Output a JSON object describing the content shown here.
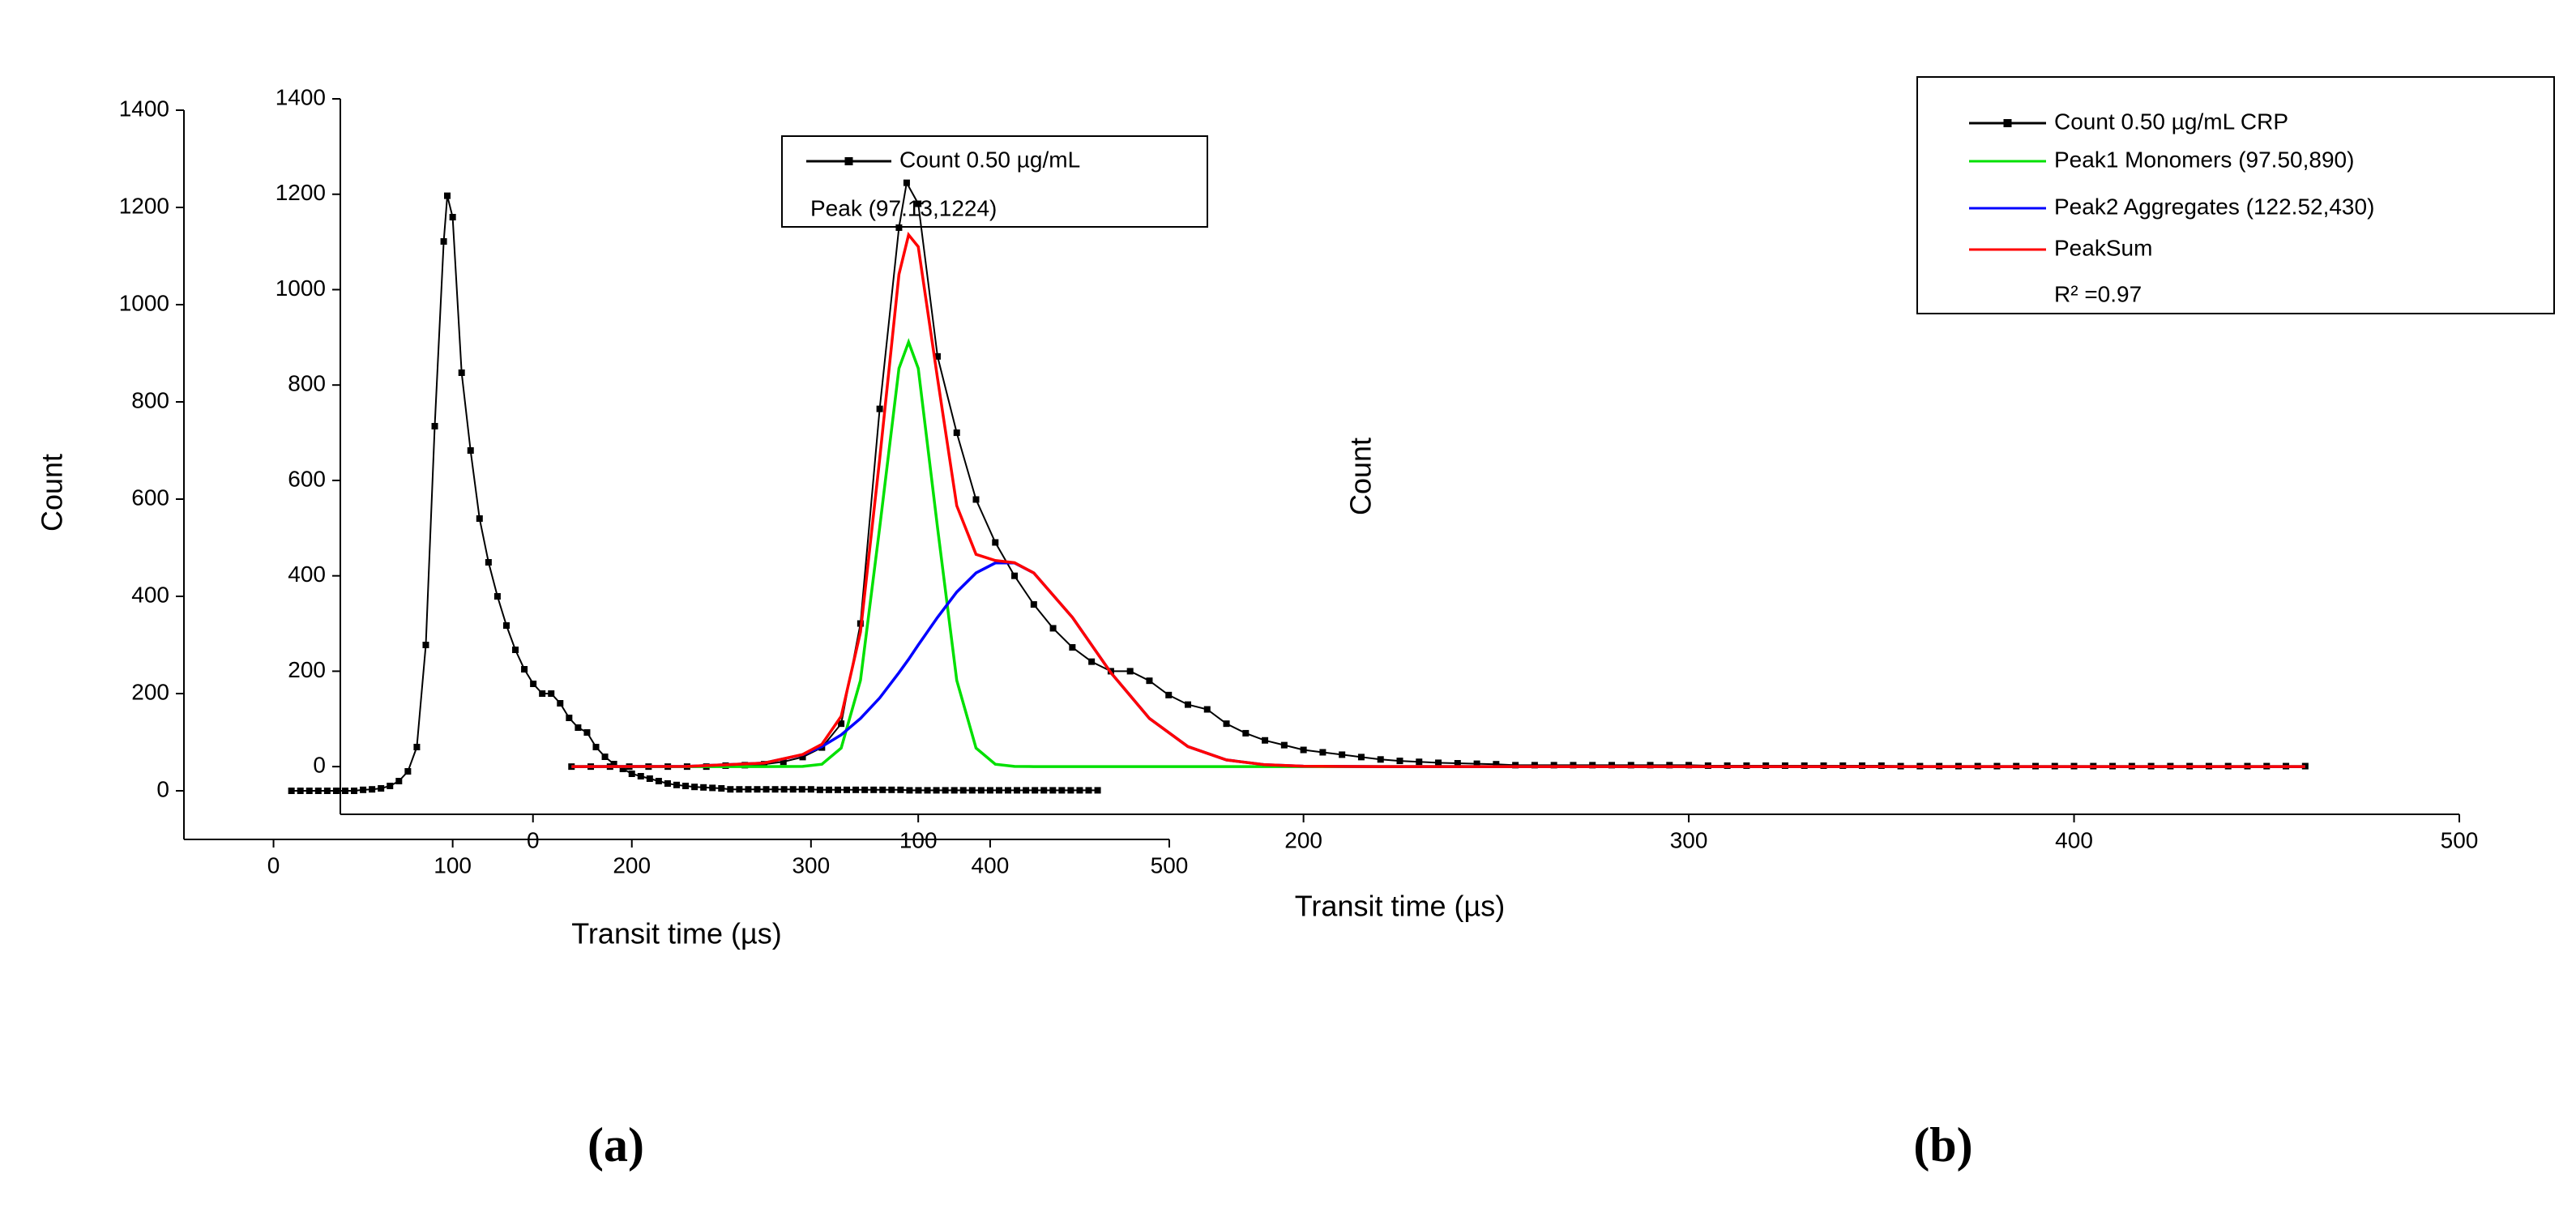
{
  "chart_data": [
    {
      "type": "line",
      "caption": "(a)",
      "xlabel": "Transit time (µs)",
      "ylabel": "Count",
      "xlim": [
        -50,
        500
      ],
      "xticks": [
        0,
        100,
        200,
        300,
        400,
        500
      ],
      "ylim": [
        -100,
        1400
      ],
      "yticks": [
        0,
        200,
        400,
        600,
        800,
        1000,
        1200,
        1400
      ],
      "x": [
        10,
        15,
        20,
        25,
        30,
        35,
        40,
        45,
        50,
        55,
        60,
        65,
        70,
        75,
        80,
        85,
        90,
        95,
        97,
        100,
        105,
        110,
        115,
        120,
        125,
        130,
        135,
        140,
        145,
        150,
        155,
        160,
        165,
        170,
        175,
        180,
        185,
        190,
        195,
        200,
        205,
        210,
        215,
        220,
        225,
        230,
        235,
        240,
        245,
        250,
        255,
        260,
        265,
        270,
        275,
        280,
        285,
        290,
        295,
        300,
        305,
        310,
        315,
        320,
        325,
        330,
        335,
        340,
        345,
        350,
        355,
        360,
        365,
        370,
        375,
        380,
        385,
        390,
        395,
        400,
        405,
        410,
        415,
        420,
        425,
        430,
        435,
        440,
        445,
        450,
        455,
        460
      ],
      "series": [
        {
          "name": "Count 0.50 µg/mL",
          "color": "#000000",
          "marker": "square",
          "values": [
            0,
            0,
            0,
            0,
            0,
            0,
            0,
            0,
            2,
            3,
            5,
            10,
            20,
            40,
            90,
            300,
            750,
            1130,
            1224,
            1180,
            860,
            700,
            560,
            470,
            400,
            340,
            290,
            250,
            220,
            200,
            200,
            180,
            150,
            130,
            120,
            90,
            70,
            55,
            45,
            35,
            30,
            25,
            20,
            15,
            12,
            10,
            8,
            7,
            6,
            5,
            3,
            3,
            3,
            3,
            3,
            3,
            3,
            3,
            3,
            3,
            2,
            2,
            2,
            2,
            2,
            2,
            2,
            2,
            2,
            2,
            1,
            1,
            1,
            1,
            1,
            1,
            1,
            1,
            1,
            1,
            1,
            1,
            1,
            1,
            1,
            1,
            1,
            1,
            1,
            1,
            1,
            1
          ]
        }
      ],
      "annotation": "Peak (97.13,1224)"
    },
    {
      "type": "line",
      "caption": "(b)",
      "xlabel": "Transit time (µs)",
      "ylabel": "Count",
      "xlim": [
        -50,
        500
      ],
      "xticks": [
        0,
        100,
        200,
        300,
        400,
        500
      ],
      "ylim": [
        -100,
        1400
      ],
      "yticks": [
        0,
        200,
        400,
        600,
        800,
        1000,
        1200,
        1400
      ],
      "x": [
        10,
        15,
        20,
        25,
        30,
        35,
        40,
        45,
        50,
        55,
        60,
        65,
        70,
        75,
        80,
        85,
        90,
        95,
        97,
        100,
        105,
        110,
        115,
        120,
        125,
        130,
        135,
        140,
        145,
        150,
        155,
        160,
        165,
        170,
        175,
        180,
        185,
        190,
        195,
        200,
        205,
        210,
        215,
        220,
        225,
        230,
        235,
        240,
        245,
        250,
        255,
        260,
        265,
        270,
        275,
        280,
        285,
        290,
        295,
        300,
        305,
        310,
        315,
        320,
        325,
        330,
        335,
        340,
        345,
        350,
        355,
        360,
        365,
        370,
        375,
        380,
        385,
        390,
        395,
        400,
        405,
        410,
        415,
        420,
        425,
        430,
        435,
        440,
        445,
        450,
        455,
        460
      ],
      "series": [
        {
          "name": "Count 0.50 µg/mL CRP",
          "color": "#000000",
          "marker": "square",
          "values": [
            0,
            0,
            0,
            0,
            0,
            0,
            0,
            0,
            2,
            3,
            5,
            10,
            20,
            40,
            90,
            300,
            750,
            1130,
            1224,
            1180,
            860,
            700,
            560,
            470,
            400,
            340,
            290,
            250,
            220,
            200,
            200,
            180,
            150,
            130,
            120,
            90,
            70,
            55,
            45,
            35,
            30,
            25,
            20,
            15,
            12,
            10,
            8,
            7,
            6,
            5,
            3,
            3,
            3,
            3,
            3,
            3,
            3,
            3,
            3,
            3,
            2,
            2,
            2,
            2,
            2,
            2,
            2,
            2,
            2,
            2,
            1,
            1,
            1,
            1,
            1,
            1,
            1,
            1,
            1,
            1,
            1,
            1,
            1,
            1,
            1,
            1,
            1,
            1,
            1,
            1,
            1,
            1
          ]
        },
        {
          "name": "Peak1 Monomers (97.50,890)",
          "color": "#00e000",
          "x": [
            10,
            40,
            60,
            70,
            75,
            80,
            85,
            90,
            95,
            97.5,
            100,
            105,
            110,
            115,
            120,
            125,
            130,
            140,
            150,
            160,
            170,
            180,
            190,
            200,
            220,
            250,
            300,
            460
          ],
          "values": [
            0,
            0,
            0,
            0.4,
            5,
            39,
            181,
            501,
            835,
            890,
            835,
            501,
            181,
            39,
            5,
            0.4,
            0,
            0,
            0,
            0,
            0,
            0,
            0,
            0,
            0,
            0,
            0,
            0
          ]
        },
        {
          "name": "Peak2 Aggregates (122.52,430)",
          "color": "#0000ff",
          "x": [
            10,
            40,
            60,
            70,
            75,
            80,
            85,
            90,
            95,
            97.5,
            100,
            105,
            110,
            115,
            120,
            125,
            130,
            140,
            150,
            160,
            170,
            180,
            190,
            200,
            220,
            250,
            300,
            460
          ],
          "values": [
            0,
            0.4,
            7.6,
            25,
            42,
            66.5,
            101,
            144,
            197,
            225,
            255,
            313,
            366,
            406,
            427,
            427,
            406,
            313,
            197,
            101,
            42,
            14,
            3.9,
            0.9,
            0,
            0,
            0,
            0
          ]
        },
        {
          "name": "PeakSum",
          "color": "#ff0000",
          "x": [
            10,
            40,
            60,
            70,
            75,
            80,
            85,
            90,
            95,
            97.5,
            100,
            105,
            110,
            115,
            120,
            125,
            130,
            140,
            150,
            160,
            170,
            180,
            190,
            200,
            220,
            250,
            300,
            460
          ],
          "values": [
            0,
            0.4,
            7.6,
            25.4,
            47,
            105.5,
            282,
            645,
            1032,
            1115,
            1090,
            814,
            547,
            445,
            432,
            427.4,
            406,
            313,
            197,
            101,
            42,
            14,
            3.9,
            0.9,
            0,
            0,
            0,
            0
          ]
        }
      ],
      "annotation": "R² =0.97"
    }
  ]
}
